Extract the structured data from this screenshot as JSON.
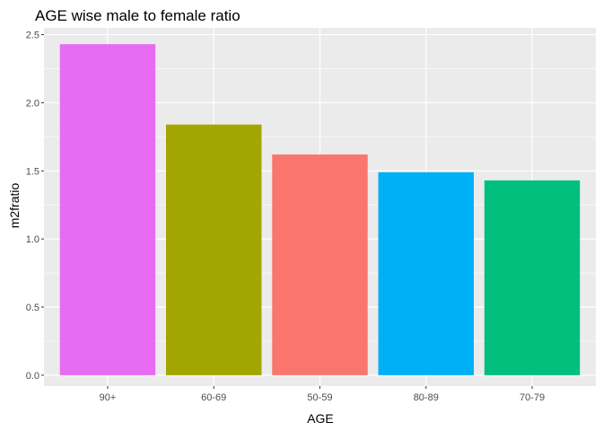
{
  "chart_data": {
    "type": "bar",
    "title": "AGE wise  male to female ratio",
    "xlabel": "AGE",
    "ylabel": "m2fratio",
    "categories": [
      "90+",
      "60-69",
      "50-59",
      "80-89",
      "70-79"
    ],
    "values": [
      2.43,
      1.84,
      1.62,
      1.49,
      1.43
    ],
    "colors": [
      "#E76BF3",
      "#A3A500",
      "#F8766D",
      "#00B0F6",
      "#00BF7D"
    ],
    "ylim": [
      -0.08,
      2.55
    ],
    "yticks": [
      0.0,
      0.5,
      1.0,
      1.5,
      2.0,
      2.5
    ],
    "ytick_labels": [
      "0.0",
      "0.5",
      "1.0",
      "1.5",
      "2.0",
      "2.5"
    ],
    "grid": true,
    "legend": "none",
    "panel_background": "#EBEBEB"
  }
}
